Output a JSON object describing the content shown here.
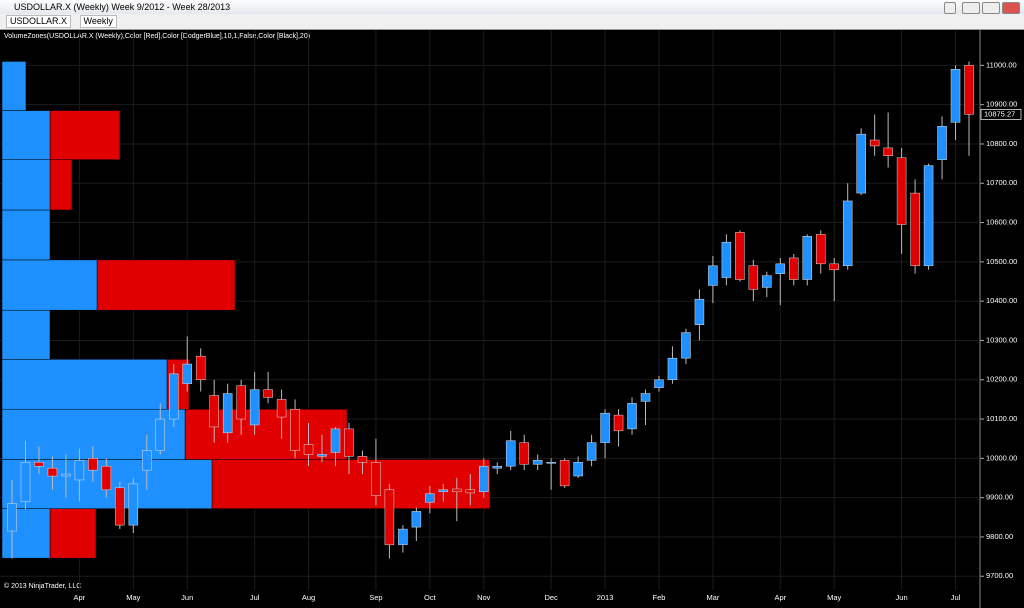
{
  "window": {
    "title": "USDOLLAR.X (Weekly)  Week 9/2012 - Week 28/2013",
    "symbol": "USDOLLAR.X",
    "interval": "Weekly"
  },
  "chart_data": {
    "type": "candlestick",
    "indicator_label": "VolumeZones(USDOLLAR.X (Weekly),Color [Red],Color [DodgerBlue],10,1,False,Color [Black],20)",
    "copyright": "© 2013 NinjaTrader, LLC",
    "up_color": "#1e90ff",
    "down_color": "#e00000",
    "background": "#000000",
    "grid": true,
    "open": [
      9815,
      9890,
      9990,
      9975,
      9955,
      9945,
      10000,
      9980,
      9925,
      9830,
      9970,
      10020,
      10100,
      10190,
      10260,
      10160,
      10065,
      10185,
      10085,
      10175,
      10150,
      10125,
      10035,
      10005,
      10015,
      10075,
      10005,
      9990,
      9920,
      9780,
      9825,
      9888,
      9915,
      9922,
      9920,
      9915,
      9975,
      9980,
      10040,
      9985,
      9990,
      9995,
      9955,
      9995,
      10040,
      10110,
      10075,
      10145,
      10180,
      10200,
      10255,
      10340,
      10440,
      10460,
      10575,
      10490,
      10435,
      10470,
      10510,
      10455,
      10570,
      10495,
      10490,
      10675,
      10810,
      10790,
      10765,
      10675,
      10490,
      10760,
      10855,
      11000
    ],
    "high": [
      9945,
      10045,
      10030,
      10005,
      10010,
      10025,
      10030,
      10000,
      9940,
      9950,
      10060,
      10140,
      10240,
      10310,
      10280,
      10200,
      10190,
      10200,
      10220,
      10220,
      10175,
      10150,
      10090,
      10060,
      10080,
      10090,
      10020,
      10050,
      9935,
      9830,
      9875,
      9930,
      9935,
      9950,
      9960,
      10000,
      9990,
      10070,
      10060,
      10010,
      10000,
      10000,
      10005,
      10060,
      10125,
      10125,
      10155,
      10175,
      10210,
      10285,
      10330,
      10430,
      10515,
      10570,
      10580,
      10505,
      10475,
      10510,
      10520,
      10570,
      10580,
      10510,
      10700,
      10840,
      10875,
      10880,
      10790,
      10710,
      10750,
      10870,
      11000,
      11010
    ],
    "low": [
      9745,
      9870,
      9960,
      9920,
      9900,
      9890,
      9940,
      9900,
      9820,
      9810,
      9920,
      10010,
      10080,
      10170,
      10170,
      10040,
      10040,
      10060,
      10060,
      10140,
      10050,
      10000,
      9980,
      9990,
      9980,
      9960,
      9960,
      9880,
      9745,
      9760,
      9790,
      9860,
      9890,
      9840,
      9880,
      9900,
      9960,
      9970,
      9970,
      9970,
      9920,
      9925,
      9950,
      9980,
      10000,
      10030,
      10060,
      10085,
      10170,
      10190,
      10240,
      10300,
      10395,
      10440,
      10450,
      10400,
      10410,
      10390,
      10440,
      10440,
      10470,
      10400,
      10480,
      10670,
      10770,
      10740,
      10520,
      10470,
      10480,
      10710,
      10810,
      10770
    ],
    "close": [
      9885,
      9990,
      9980,
      9955,
      9960,
      9995,
      9970,
      9920,
      9830,
      9935,
      10020,
      10100,
      10215,
      10240,
      10200,
      10080,
      10165,
      10100,
      10175,
      10155,
      10105,
      10020,
      10010,
      10010,
      10075,
      10005,
      9990,
      9905,
      9780,
      9820,
      9865,
      9910,
      9920,
      9915,
      9912,
      9980,
      9980,
      10045,
      9985,
      9995,
      9990,
      9930,
      9990,
      10040,
      10115,
      10070,
      10140,
      10165,
      10200,
      10255,
      10320,
      10405,
      10490,
      10550,
      10455,
      10430,
      10465,
      10495,
      10455,
      10565,
      10495,
      10480,
      10655,
      10825,
      10795,
      10770,
      10595,
      10490,
      10745,
      10845,
      10990,
      10875.27
    ],
    "last_price": 10875.27,
    "ylim": [
      9665,
      11090
    ],
    "yticks": [
      {
        "value": 9700,
        "label": "9700.00"
      },
      {
        "value": 9800,
        "label": "9800.00"
      },
      {
        "value": 9900,
        "label": "9900.00"
      },
      {
        "value": 10000,
        "label": "10000.00"
      },
      {
        "value": 10100,
        "label": "10100.00"
      },
      {
        "value": 10200,
        "label": "10200.00"
      },
      {
        "value": 10300,
        "label": "10300.00"
      },
      {
        "value": 10400,
        "label": "10400.00"
      },
      {
        "value": 10500,
        "label": "10500.00"
      },
      {
        "value": 10600,
        "label": "10600.00"
      },
      {
        "value": 10700,
        "label": "10700.00"
      },
      {
        "value": 10800,
        "label": "10800.00"
      },
      {
        "value": 10900,
        "label": "10900.00"
      },
      {
        "value": 11000,
        "label": "11000.00"
      }
    ],
    "xticks": [
      {
        "value": 5,
        "label": "Apr"
      },
      {
        "value": 9,
        "label": "May"
      },
      {
        "value": 13,
        "label": "Jun"
      },
      {
        "value": 18,
        "label": "Jul"
      },
      {
        "value": 22,
        "label": "Aug"
      },
      {
        "value": 27,
        "label": "Sep"
      },
      {
        "value": 31,
        "label": "Oct"
      },
      {
        "value": 35,
        "label": "Nov"
      },
      {
        "value": 40,
        "label": "Dec"
      },
      {
        "value": 44,
        "label": "2013"
      },
      {
        "value": 48,
        "label": "Feb"
      },
      {
        "value": 52,
        "label": "Mar"
      },
      {
        "value": 57,
        "label": "Apr"
      },
      {
        "value": 61,
        "label": "May"
      },
      {
        "value": 66,
        "label": "Jun"
      },
      {
        "value": 70,
        "label": "Jul"
      }
    ],
    "volume_zones": {
      "price_edges": [
        9746,
        9872,
        9997,
        10125,
        10252,
        10377,
        10505,
        10632,
        10760,
        10885,
        11010
      ],
      "up": [
        48,
        210,
        183,
        165,
        48,
        95,
        48,
        48,
        48,
        24
      ],
      "down": [
        46,
        278,
        162,
        22,
        0,
        138,
        0,
        22,
        70,
        0
      ]
    }
  }
}
